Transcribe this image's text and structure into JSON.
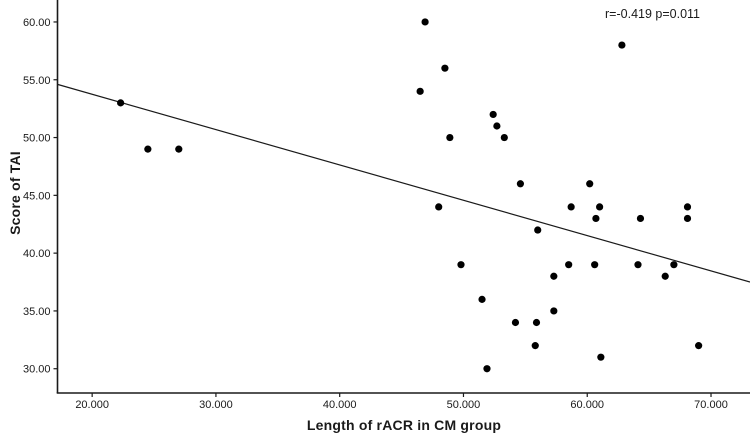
{
  "chart_data": {
    "type": "scatter",
    "title": "",
    "xlabel": "Length of rACR in CM group",
    "ylabel": "Score of TAI",
    "annotation": "r=-0.419 p=0.011",
    "stats": {
      "r": -0.419,
      "p": 0.011
    },
    "xlim": [
      17.2,
      73.15
    ],
    "ylim": [
      27.9,
      61.9
    ],
    "x_ticks": [
      20,
      30,
      40,
      50,
      60,
      70
    ],
    "x_tick_labels": [
      "20.000",
      "30.000",
      "40.000",
      "50.000",
      "60.000",
      "70.000"
    ],
    "y_ticks": [
      30,
      35,
      40,
      45,
      50,
      55,
      60
    ],
    "y_tick_labels": [
      "30.00",
      "35.00",
      "40.00",
      "45.00",
      "50.00",
      "55.00",
      "60.00"
    ],
    "grid": false,
    "legend": null,
    "point_color": "#000000",
    "line_color": "#1a1a1a",
    "axis_color": "#1a1a1a",
    "background_color": "#ffffff",
    "points": [
      [
        22.3,
        53
      ],
      [
        24.5,
        49
      ],
      [
        27.0,
        49
      ],
      [
        46.5,
        54
      ],
      [
        46.9,
        60
      ],
      [
        48.0,
        44
      ],
      [
        48.5,
        56
      ],
      [
        48.9,
        50
      ],
      [
        49.8,
        39
      ],
      [
        51.5,
        36
      ],
      [
        51.9,
        30
      ],
      [
        52.4,
        52
      ],
      [
        52.7,
        51
      ],
      [
        53.3,
        50
      ],
      [
        54.2,
        34
      ],
      [
        54.6,
        46
      ],
      [
        55.8,
        32
      ],
      [
        55.9,
        34
      ],
      [
        56.0,
        42
      ],
      [
        57.3,
        35
      ],
      [
        57.3,
        38
      ],
      [
        58.5,
        39
      ],
      [
        58.7,
        44
      ],
      [
        60.2,
        46
      ],
      [
        60.6,
        39
      ],
      [
        60.7,
        43
      ],
      [
        61.0,
        44
      ],
      [
        61.1,
        31
      ],
      [
        62.8,
        58
      ],
      [
        64.1,
        39
      ],
      [
        64.3,
        43
      ],
      [
        66.3,
        38
      ],
      [
        67.0,
        39
      ],
      [
        68.1,
        43
      ],
      [
        68.1,
        44
      ],
      [
        69.0,
        32
      ]
    ],
    "fit_line": {
      "x1": 17.2,
      "y1": 54.6,
      "x2": 73.15,
      "y2": 37.5
    }
  }
}
